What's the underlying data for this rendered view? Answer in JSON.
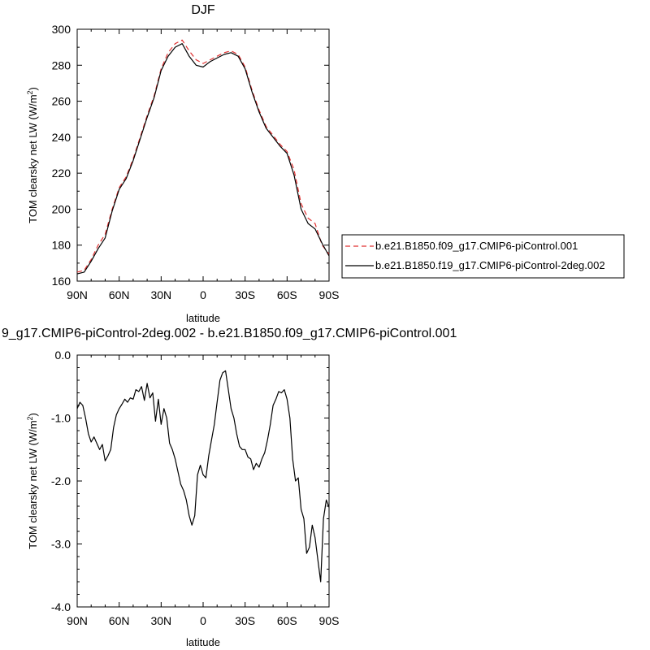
{
  "chart_data": [
    {
      "type": "line",
      "title": "DJF",
      "xlabel": "latitude",
      "ylabel": "TOM clearsky net LW (W/m",
      "ylabel_sup": "2",
      "ylabel_end": ")",
      "x_axis": "latitude from 90N (left) to 90S (right)",
      "xlim": [
        90,
        -90
      ],
      "ylim": [
        160,
        300
      ],
      "yticks": [
        160,
        180,
        200,
        220,
        240,
        260,
        280,
        300
      ],
      "xticks": [
        "90N",
        "60N",
        "30N",
        "0",
        "30S",
        "60S",
        "90S"
      ],
      "xtick_values": [
        90,
        60,
        30,
        0,
        -30,
        -60,
        -90
      ],
      "legend_position": "right, outside plot",
      "series": [
        {
          "name": "b.e21.B1850.f09_g17.CMIP6-piControl.001",
          "color": "#e03030",
          "dash": "dashed",
          "x": [
            90,
            85,
            80,
            75,
            70,
            65,
            60,
            55,
            50,
            45,
            40,
            35,
            30,
            25,
            20,
            15,
            10,
            5,
            0,
            -5,
            -10,
            -15,
            -20,
            -25,
            -30,
            -35,
            -40,
            -45,
            -50,
            -55,
            -60,
            -65,
            -70,
            -75,
            -80,
            -85,
            -90
          ],
          "y": [
            165,
            166,
            172,
            180,
            186,
            200,
            212,
            218,
            228,
            240,
            252,
            263,
            278,
            287,
            292,
            294,
            288,
            283,
            281,
            283,
            285,
            287,
            288,
            286,
            279,
            266,
            255,
            246,
            241,
            236,
            232,
            222,
            203,
            195,
            192,
            180,
            175
          ]
        },
        {
          "name": "b.e21.B1850.f19_g17.CMIP6-piControl-2deg.002",
          "color": "#000000",
          "dash": "solid",
          "x": [
            90,
            85,
            80,
            75,
            70,
            65,
            60,
            55,
            50,
            45,
            40,
            35,
            30,
            25,
            20,
            15,
            10,
            5,
            0,
            -5,
            -10,
            -15,
            -20,
            -25,
            -30,
            -35,
            -40,
            -45,
            -50,
            -55,
            -60,
            -65,
            -70,
            -75,
            -80,
            -85,
            -90
          ],
          "y": [
            164,
            165,
            171,
            178,
            184,
            199,
            211,
            217,
            227,
            239,
            251,
            262,
            277,
            285,
            290,
            292,
            285,
            280,
            279,
            282,
            284,
            286,
            287,
            285,
            278,
            265,
            254,
            245,
            240,
            235,
            231,
            219,
            200,
            192,
            189,
            181,
            174
          ]
        }
      ]
    },
    {
      "type": "line",
      "title": "9_g17.CMIP6-piControl-2deg.002 - b.e21.B1850.f09_g17.CMIP6-piControl.001",
      "xlabel": "latitude",
      "ylabel": "TOM clearsky net LW (W/m",
      "ylabel_sup": "2",
      "ylabel_end": ")",
      "xlim": [
        90,
        -90
      ],
      "ylim": [
        -4.0,
        0.0
      ],
      "yticks": [
        -4.0,
        -3.0,
        -2.0,
        -1.0,
        0.0
      ],
      "ytick_labels": [
        "-4.0",
        "-3.0",
        "-2.0",
        "-1.0",
        "0.0"
      ],
      "xticks": [
        "90N",
        "60N",
        "30N",
        "0",
        "30S",
        "60S",
        "90S"
      ],
      "xtick_values": [
        90,
        60,
        30,
        0,
        -30,
        -60,
        -90
      ],
      "series": [
        {
          "color": "#000000",
          "dash": "solid",
          "x": [
            90,
            88,
            86,
            84,
            82,
            80,
            78,
            76,
            74,
            72,
            70,
            68,
            66,
            64,
            62,
            60,
            58,
            56,
            54,
            52,
            50,
            48,
            46,
            44,
            42,
            40,
            38,
            36,
            34,
            32,
            30,
            28,
            26,
            24,
            22,
            20,
            18,
            16,
            14,
            12,
            10,
            8,
            6,
            4,
            2,
            0,
            -2,
            -4,
            -6,
            -8,
            -10,
            -12,
            -14,
            -16,
            -18,
            -20,
            -22,
            -24,
            -26,
            -28,
            -30,
            -32,
            -34,
            -36,
            -38,
            -40,
            -42,
            -44,
            -46,
            -48,
            -50,
            -52,
            -54,
            -56,
            -58,
            -60,
            -62,
            -64,
            -66,
            -68,
            -70,
            -72,
            -74,
            -76,
            -78,
            -80,
            -82,
            -84,
            -86,
            -88,
            -90
          ],
          "y": [
            -0.85,
            -0.75,
            -0.8,
            -1.0,
            -1.25,
            -1.38,
            -1.3,
            -1.4,
            -1.5,
            -1.42,
            -1.68,
            -1.6,
            -1.5,
            -1.15,
            -0.95,
            -0.85,
            -0.78,
            -0.7,
            -0.75,
            -0.68,
            -0.7,
            -0.55,
            -0.58,
            -0.5,
            -0.72,
            -0.45,
            -0.68,
            -0.6,
            -1.05,
            -0.7,
            -1.1,
            -0.85,
            -1.0,
            -1.4,
            -1.5,
            -1.65,
            -1.85,
            -2.05,
            -2.15,
            -2.3,
            -2.55,
            -2.7,
            -2.55,
            -1.9,
            -1.75,
            -1.9,
            -1.95,
            -1.6,
            -1.35,
            -1.1,
            -0.75,
            -0.4,
            -0.28,
            -0.25,
            -0.55,
            -0.85,
            -1.0,
            -1.25,
            -1.45,
            -1.5,
            -1.5,
            -1.62,
            -1.65,
            -1.82,
            -1.72,
            -1.78,
            -1.65,
            -1.55,
            -1.35,
            -1.1,
            -0.8,
            -0.7,
            -0.58,
            -0.6,
            -0.55,
            -0.7,
            -1.0,
            -1.65,
            -2.0,
            -1.95,
            -2.45,
            -2.6,
            -3.15,
            -3.05,
            -2.7,
            -2.9,
            -3.25,
            -3.6,
            -2.6,
            -2.3,
            -2.42
          ]
        }
      ]
    }
  ],
  "panel_top": {
    "ylabel_sup_text": "2"
  }
}
